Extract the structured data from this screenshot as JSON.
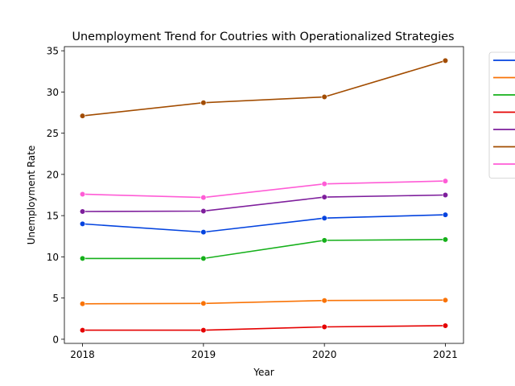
{
  "chart_data": {
    "type": "line",
    "title": "Unemployment Trend for Coutries with Operationalized Strategies",
    "xlabel": "Year",
    "ylabel": "Unemployment Rate",
    "x": [
      2018,
      2019,
      2020,
      2021
    ],
    "x_tick_labels": [
      "2018",
      "2019",
      "2020",
      "2021"
    ],
    "ylim": [
      -0.5,
      35.5
    ],
    "y_ticks": [
      0,
      5,
      10,
      15,
      20,
      25,
      30,
      35
    ],
    "y_tick_labels": [
      "0",
      "5",
      "10",
      "15",
      "20",
      "25",
      "30",
      "35"
    ],
    "grid": false,
    "legend_position": "outside-top-right",
    "series": [
      {
        "name": "",
        "color": "#0343df",
        "values": [
          14.0,
          13.0,
          14.7,
          15.1
        ]
      },
      {
        "name": "",
        "color": "#f97306",
        "values": [
          4.3,
          4.35,
          4.7,
          4.75
        ]
      },
      {
        "name": "",
        "color": "#15b01a",
        "values": [
          9.8,
          9.8,
          12.0,
          12.1
        ]
      },
      {
        "name": "",
        "color": "#e50000",
        "values": [
          1.1,
          1.1,
          1.5,
          1.65
        ]
      },
      {
        "name": "",
        "color": "#7e1e9c",
        "values": [
          15.5,
          15.55,
          17.25,
          17.5
        ]
      },
      {
        "name": "",
        "color": "#a24c00",
        "values": [
          27.1,
          28.7,
          29.4,
          33.8
        ]
      },
      {
        "name": "",
        "color": "#ff5cd6",
        "values": [
          17.6,
          17.2,
          18.85,
          19.2
        ]
      }
    ]
  }
}
